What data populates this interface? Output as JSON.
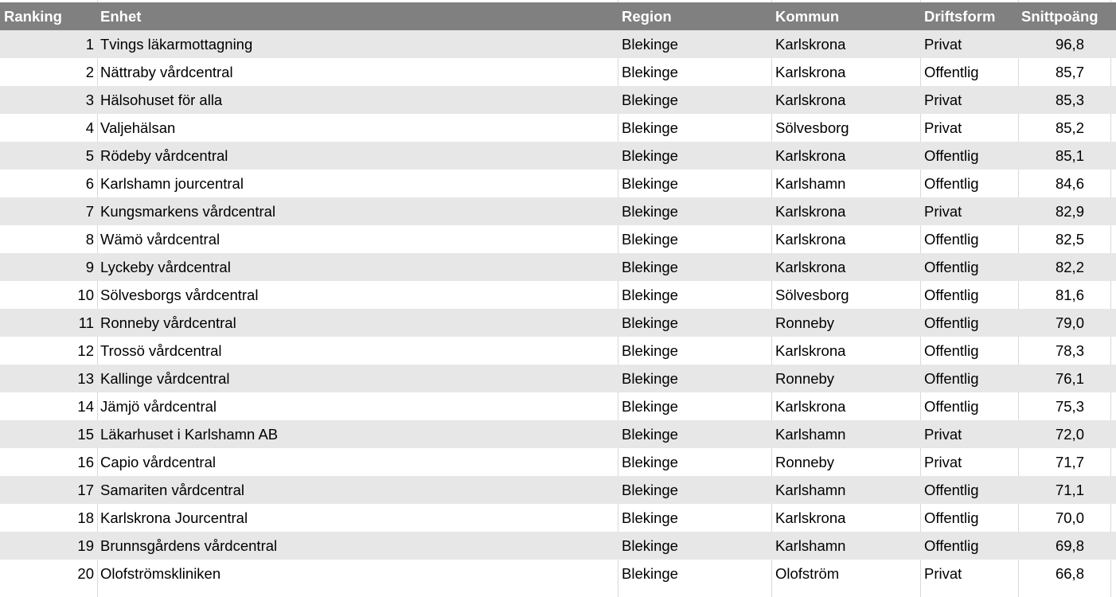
{
  "table": {
    "headers": {
      "ranking": "Ranking",
      "enhet": "Enhet",
      "region": "Region",
      "kommun": "Kommun",
      "driftsform": "Driftsform",
      "snittpoang": "Snittpoäng"
    },
    "rows": [
      {
        "ranking": "1",
        "enhet": "Tvings läkarmottagning",
        "region": "Blekinge",
        "kommun": "Karlskrona",
        "driftsform": "Privat",
        "snittpoang": "96,8"
      },
      {
        "ranking": "2",
        "enhet": "Nättraby vårdcentral",
        "region": "Blekinge",
        "kommun": "Karlskrona",
        "driftsform": "Offentlig",
        "snittpoang": "85,7"
      },
      {
        "ranking": "3",
        "enhet": "Hälsohuset för alla",
        "region": "Blekinge",
        "kommun": "Karlskrona",
        "driftsform": "Privat",
        "snittpoang": "85,3"
      },
      {
        "ranking": "4",
        "enhet": "Valjehälsan",
        "region": "Blekinge",
        "kommun": "Sölvesborg",
        "driftsform": "Privat",
        "snittpoang": "85,2"
      },
      {
        "ranking": "5",
        "enhet": "Rödeby vårdcentral",
        "region": "Blekinge",
        "kommun": "Karlskrona",
        "driftsform": "Offentlig",
        "snittpoang": "85,1"
      },
      {
        "ranking": "6",
        "enhet": "Karlshamn jourcentral",
        "region": "Blekinge",
        "kommun": "Karlshamn",
        "driftsform": "Offentlig",
        "snittpoang": "84,6"
      },
      {
        "ranking": "7",
        "enhet": "Kungsmarkens vårdcentral",
        "region": "Blekinge",
        "kommun": "Karlskrona",
        "driftsform": "Privat",
        "snittpoang": "82,9"
      },
      {
        "ranking": "8",
        "enhet": "Wämö vårdcentral",
        "region": "Blekinge",
        "kommun": "Karlskrona",
        "driftsform": "Offentlig",
        "snittpoang": "82,5"
      },
      {
        "ranking": "9",
        "enhet": "Lyckeby vårdcentral",
        "region": "Blekinge",
        "kommun": "Karlskrona",
        "driftsform": "Offentlig",
        "snittpoang": "82,2"
      },
      {
        "ranking": "10",
        "enhet": "Sölvesborgs vårdcentral",
        "region": "Blekinge",
        "kommun": "Sölvesborg",
        "driftsform": "Offentlig",
        "snittpoang": "81,6"
      },
      {
        "ranking": "11",
        "enhet": "Ronneby vårdcentral",
        "region": "Blekinge",
        "kommun": "Ronneby",
        "driftsform": "Offentlig",
        "snittpoang": "79,0"
      },
      {
        "ranking": "12",
        "enhet": "Trossö vårdcentral",
        "region": "Blekinge",
        "kommun": "Karlskrona",
        "driftsform": "Offentlig",
        "snittpoang": "78,3"
      },
      {
        "ranking": "13",
        "enhet": "Kallinge vårdcentral",
        "region": "Blekinge",
        "kommun": "Ronneby",
        "driftsform": "Offentlig",
        "snittpoang": "76,1"
      },
      {
        "ranking": "14",
        "enhet": "Jämjö vårdcentral",
        "region": "Blekinge",
        "kommun": "Karlskrona",
        "driftsform": "Offentlig",
        "snittpoang": "75,3"
      },
      {
        "ranking": "15",
        "enhet": "Läkarhuset i Karlshamn AB",
        "region": "Blekinge",
        "kommun": "Karlshamn",
        "driftsform": "Privat",
        "snittpoang": "72,0"
      },
      {
        "ranking": "16",
        "enhet": "Capio vårdcentral",
        "region": "Blekinge",
        "kommun": "Ronneby",
        "driftsform": "Privat",
        "snittpoang": "71,7"
      },
      {
        "ranking": "17",
        "enhet": "Samariten vårdcentral",
        "region": "Blekinge",
        "kommun": "Karlshamn",
        "driftsform": "Offentlig",
        "snittpoang": "71,1"
      },
      {
        "ranking": "18",
        "enhet": "Karlskrona Jourcentral",
        "region": "Blekinge",
        "kommun": "Karlskrona",
        "driftsform": "Offentlig",
        "snittpoang": "70,0"
      },
      {
        "ranking": "19",
        "enhet": "Brunnsgårdens vårdcentral",
        "region": "Blekinge",
        "kommun": "Karlshamn",
        "driftsform": "Offentlig",
        "snittpoang": "69,8"
      },
      {
        "ranking": "20",
        "enhet": "Olofströmskliniken",
        "region": "Blekinge",
        "kommun": "Olofström",
        "driftsform": "Privat",
        "snittpoang": "66,8"
      }
    ]
  },
  "colors": {
    "header_bg": "#808080",
    "header_text": "#ffffff",
    "stripe": "#e7e7e7",
    "gridline": "#d9d9d9"
  }
}
